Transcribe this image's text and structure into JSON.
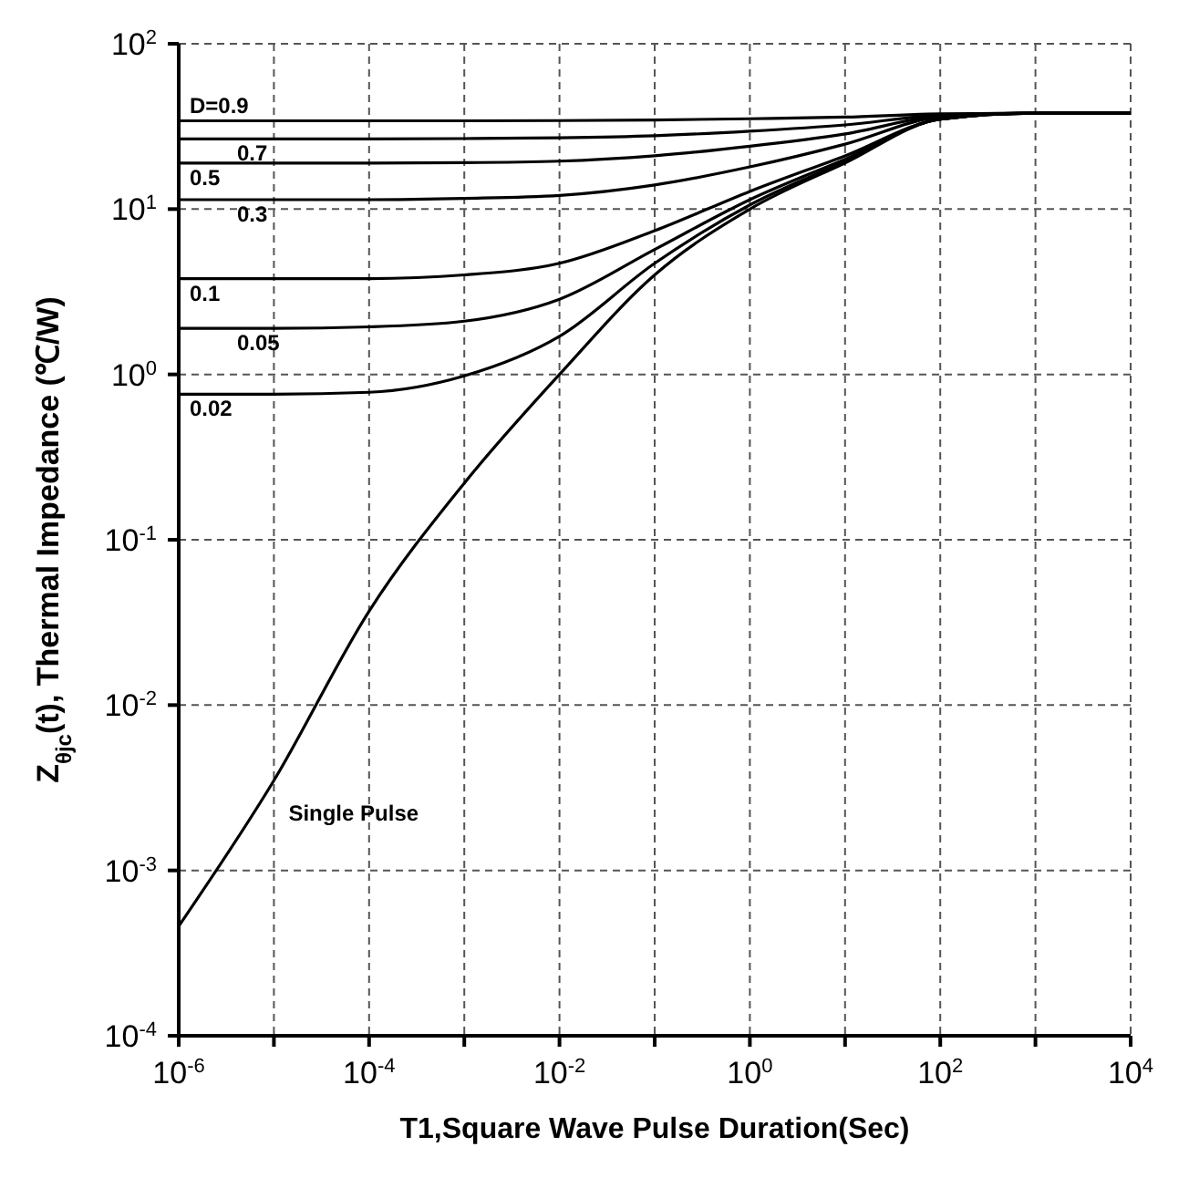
{
  "chart_data": {
    "type": "line",
    "xlabel": "T1,Square Wave Pulse Duration(Sec)",
    "ylabel": "Z$_{θjc}$(t), Thermal  Impedance (℃/W)",
    "log": "xy",
    "grid": true,
    "marker": "none",
    "line_style": "solid",
    "legend": false,
    "x": [
      1e-06,
      1e-05,
      0.0001,
      0.001,
      0.01,
      0.1,
      1,
      10,
      100,
      1000,
      10000
    ],
    "xlim": [
      1e-06,
      10000
    ],
    "xticks": [
      {
        "value": 1e-06,
        "label": "10$^{-6}$"
      },
      {
        "value": 1e-05,
        "label": null
      },
      {
        "value": 0.0001,
        "label": "10$^{-4}$"
      },
      {
        "value": 0.001,
        "label": null
      },
      {
        "value": 0.01,
        "label": "10$^{-2}$"
      },
      {
        "value": 0.1,
        "label": null
      },
      {
        "value": 1,
        "label": "10$^{0}$"
      },
      {
        "value": 10,
        "label": null
      },
      {
        "value": 100,
        "label": "10$^{2}$"
      },
      {
        "value": 1000,
        "label": null
      },
      {
        "value": 10000,
        "label": "10$^{4}$"
      }
    ],
    "ylim": [
      0.0001,
      100
    ],
    "yticks": [
      {
        "value": 0.0001,
        "label": "10$^{-4}$"
      },
      {
        "value": 0.001,
        "label": "10$^{-3}$"
      },
      {
        "value": 0.01,
        "label": "10$^{-2}$"
      },
      {
        "value": 0.1,
        "label": "10$^{-1}$"
      },
      {
        "value": 1,
        "label": "10$^{0}$"
      },
      {
        "value": 10,
        "label": "10$^{1}$"
      },
      {
        "value": 100,
        "label": "10$^{2}$"
      }
    ],
    "series": [
      {
        "name": "D=0.9",
        "color": "#000000",
        "values": [
          34.2,
          34.2,
          34.2,
          34.2,
          34.3,
          34.6,
          35.2,
          36,
          37.7,
          38,
          38
        ]
      },
      {
        "name": "0.7",
        "color": "#000000",
        "values": [
          26.6,
          26.6,
          26.6,
          26.7,
          27,
          27.8,
          29.6,
          32.3,
          37,
          38,
          38
        ]
      },
      {
        "name": "0.5",
        "color": "#000000",
        "values": [
          19,
          19,
          19,
          19.1,
          19.5,
          21,
          24,
          28.5,
          36.5,
          38,
          38
        ]
      },
      {
        "name": "0.3",
        "color": "#000000",
        "values": [
          11.4,
          11.4,
          11.4,
          11.6,
          12.1,
          14,
          18,
          24.7,
          36,
          38,
          38
        ]
      },
      {
        "name": "0.1",
        "color": "#000000",
        "values": [
          3.8,
          3.8,
          3.8,
          4,
          4.7,
          7.4,
          12.8,
          21,
          35,
          38,
          38
        ]
      },
      {
        "name": "0.05",
        "color": "#000000",
        "values": [
          1.9,
          1.9,
          1.94,
          2.1,
          2.85,
          5.7,
          11.4,
          20,
          35,
          38,
          38
        ]
      },
      {
        "name": "0.02",
        "color": "#000000",
        "values": [
          0.76,
          0.76,
          0.78,
          0.98,
          1.7,
          4.7,
          10.6,
          19.4,
          35,
          38,
          38
        ]
      },
      {
        "name": "Single Pulse",
        "color": "#000000",
        "values": [
          0.00046,
          0.0035,
          0.037,
          0.22,
          1,
          4,
          10,
          19,
          35,
          38,
          38
        ]
      }
    ]
  }
}
